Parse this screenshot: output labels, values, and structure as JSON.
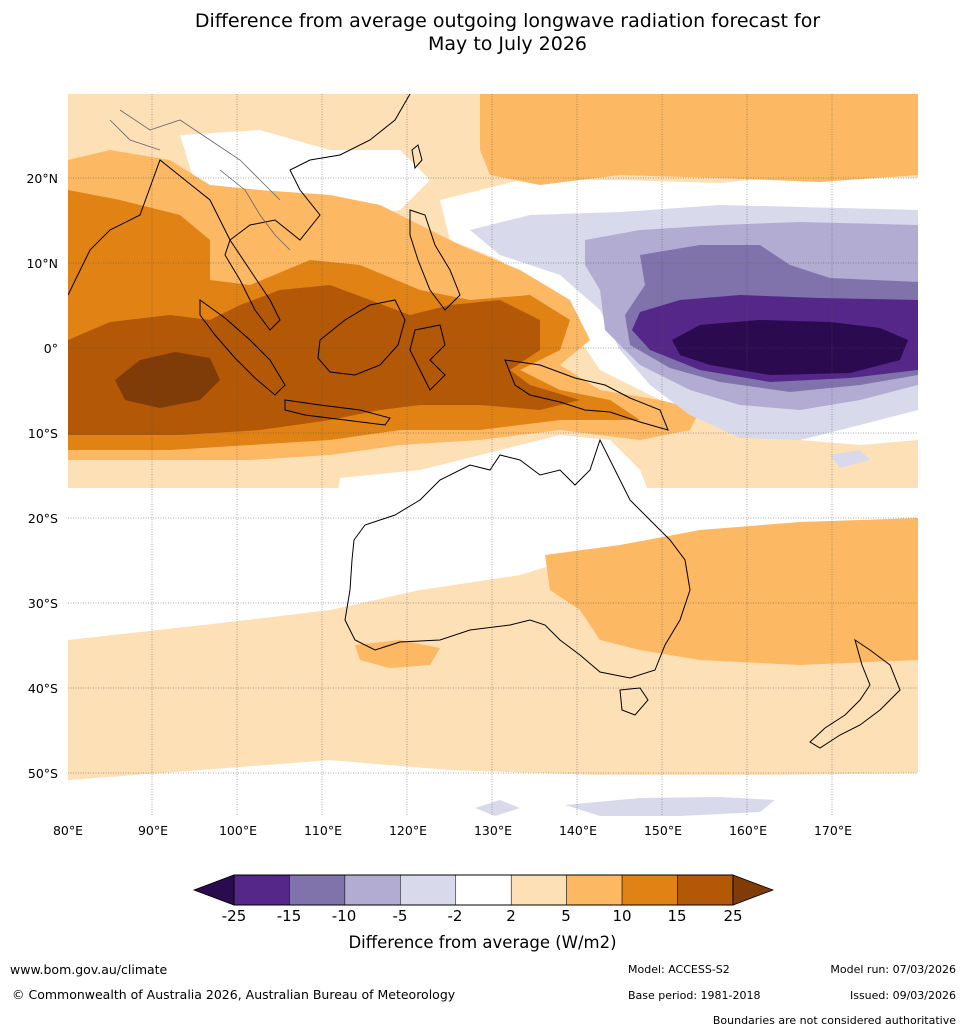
{
  "title_line1": "Difference from average outgoing longwave radiation forecast for",
  "title_line2": "May to July 2026",
  "lat_labels": [
    "20°N",
    "10°N",
    "0°",
    "10°S",
    "20°S",
    "30°S",
    "40°S",
    "50°S"
  ],
  "lon_labels": [
    "80°E",
    "90°E",
    "100°E",
    "110°E",
    "120°E",
    "130°E",
    "140°E",
    "150°E",
    "160°E",
    "170°E"
  ],
  "colorbar": {
    "ticks": [
      "-25",
      "-15",
      "-10",
      "-5",
      "-2",
      "2",
      "5",
      "10",
      "15",
      "25"
    ],
    "colors": [
      "#2b0a4f",
      "#542788",
      "#8073ac",
      "#b2abd2",
      "#d8daeb",
      "#ffffff",
      "#fee0b6",
      "#fdb863",
      "#e08214",
      "#b35806",
      "#7f3b08"
    ],
    "label": "Difference from average (W/m2)"
  },
  "map_colors": {
    "pos2": "#fee0b6",
    "pos5": "#fdb863",
    "pos10": "#e08214",
    "pos15": "#b35806",
    "pos25": "#7f3b08",
    "neg2": "#d8daeb",
    "neg5": "#b2abd2",
    "neg10": "#8073ac",
    "neg15": "#542788",
    "neg25": "#2b0a4f"
  },
  "footer": {
    "website": "www.bom.gov.au/climate",
    "copyright": "© Commonwealth of Australia 2026, Australian Bureau of Meteorology",
    "model": "Model: ACCESS-S2",
    "model_run": "Model run: 07/03/2026",
    "base_period": "Base period: 1981-2018",
    "issued": "Issued: 09/03/2026",
    "boundaries_note": "Boundaries are not considered authoritative"
  }
}
